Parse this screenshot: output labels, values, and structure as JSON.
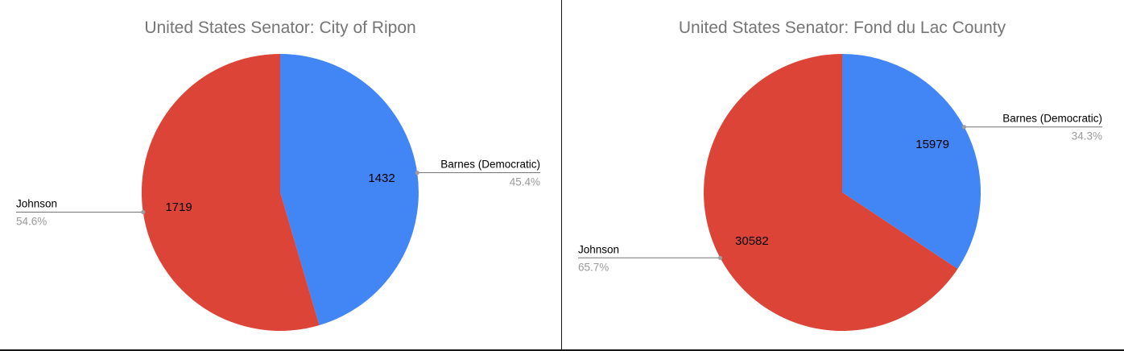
{
  "page": {
    "background": "#ffffff",
    "divider_color": "#161616"
  },
  "chart_data": [
    {
      "type": "pie",
      "title": "United States Senator: City of Ripon",
      "labels": [
        "Barnes (Democratic)",
        "Johnson"
      ],
      "values": [
        1432,
        1719
      ],
      "percents": [
        "45.4%",
        "54.6%"
      ],
      "colors": [
        "#4285f4",
        "#db4437"
      ],
      "title_color": "#757575",
      "start_angle": 0,
      "direction": "clockwise",
      "legend_position": "labeled-callouts"
    },
    {
      "type": "pie",
      "title": "United States Senator: Fond du Lac County",
      "labels": [
        "Barnes (Democratic)",
        "Johnson"
      ],
      "values": [
        15979,
        30582
      ],
      "percents": [
        "34.3%",
        "65.7%"
      ],
      "colors": [
        "#4285f4",
        "#db4437"
      ],
      "title_color": "#757575",
      "start_angle": 0,
      "direction": "clockwise",
      "legend_position": "labeled-callouts"
    }
  ]
}
